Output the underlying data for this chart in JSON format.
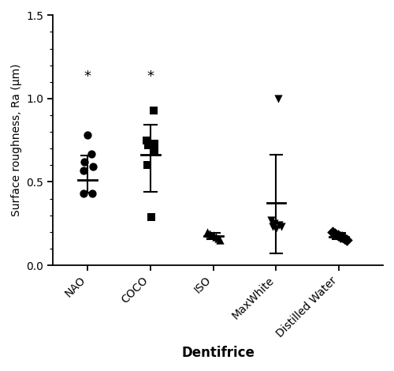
{
  "categories": [
    "NAO",
    "COCO",
    "ISO",
    "MaxWhite",
    "Distilled Water"
  ],
  "x_positions": [
    1,
    2,
    3,
    4,
    5
  ],
  "markers": [
    "o",
    "s",
    "^",
    "v",
    "D"
  ],
  "data_points": {
    "NAO": [
      0.78,
      0.67,
      0.62,
      0.59,
      0.57,
      0.43,
      0.43
    ],
    "COCO": [
      0.93,
      0.75,
      0.73,
      0.72,
      0.68,
      0.6,
      0.29
    ],
    "ISO": [
      0.2,
      0.19,
      0.18,
      0.18,
      0.17,
      0.16,
      0.15
    ],
    "MaxWhite": [
      1.0,
      0.27,
      0.25,
      0.24,
      0.23,
      0.23,
      0.22
    ],
    "Distilled Water": [
      0.2,
      0.19,
      0.18,
      0.17,
      0.17,
      0.16,
      0.15
    ]
  },
  "medians": {
    "NAO": 0.51,
    "COCO": 0.665,
    "ISO": 0.175,
    "MaxWhite": 0.375,
    "Distilled Water": 0.17
  },
  "iqr_low": {
    "NAO": 0.435,
    "COCO": 0.44,
    "ISO": 0.155,
    "MaxWhite": 0.07,
    "Distilled Water": 0.155
  },
  "iqr_high": {
    "NAO": 0.66,
    "COCO": 0.845,
    "ISO": 0.195,
    "MaxWhite": 0.665,
    "Distilled Water": 0.195
  },
  "significance": [
    "NAO",
    "COCO"
  ],
  "ylabel": "Surface roughness, Ra (μm)",
  "xlabel": "Dentifrice",
  "ylim": [
    0.0,
    1.5
  ],
  "yticks": [
    0.0,
    0.5,
    1.0,
    1.5
  ],
  "color": "#000000",
  "background_color": "#ffffff",
  "marker_size": 55,
  "linewidth": 1.5
}
